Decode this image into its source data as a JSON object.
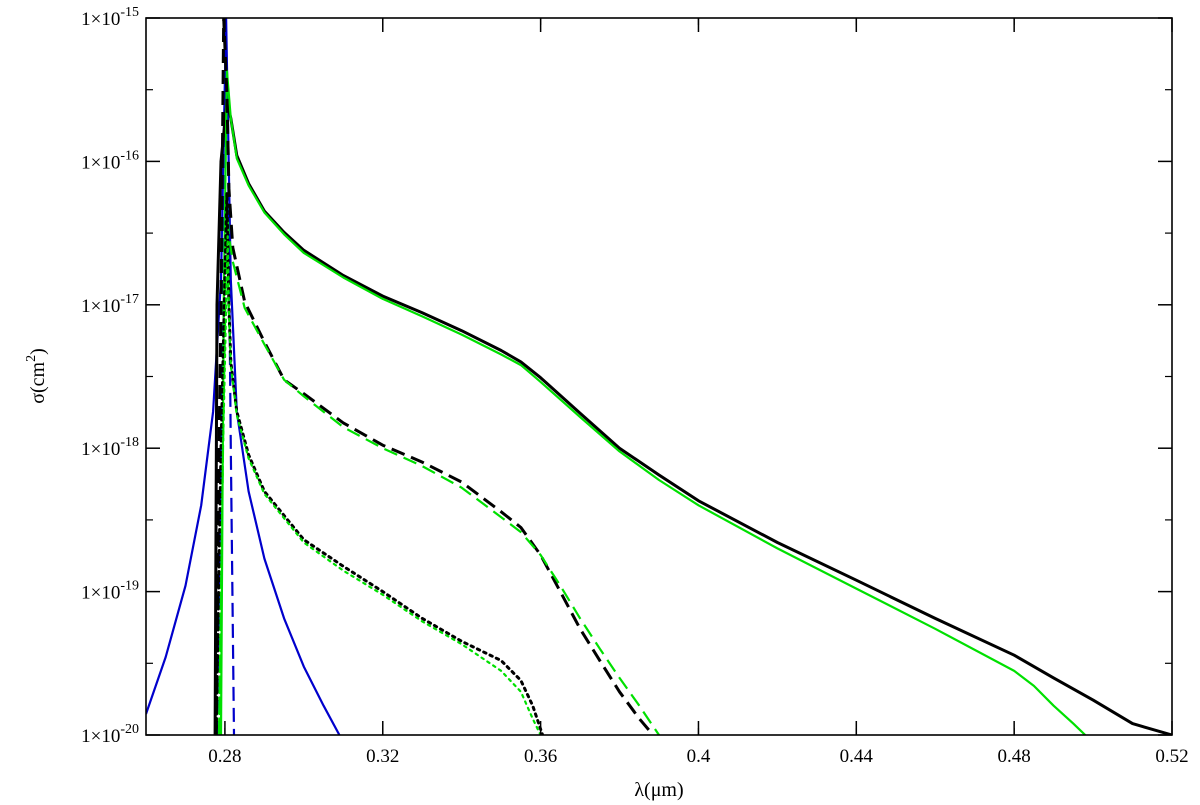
{
  "chart_data": {
    "type": "line",
    "title": "",
    "xlabel": "λ(μm)",
    "ylabel_base": "σ(cm",
    "ylabel_exp": "2",
    "ylabel_close": ")",
    "xlim": [
      0.26,
      0.52
    ],
    "ylim": [
      1e-20,
      1e-15
    ],
    "yscale": "log",
    "grid": false,
    "x_ticks": [
      0.28,
      0.32,
      0.36,
      0.4,
      0.44,
      0.48,
      0.52
    ],
    "x_tick_labels": [
      "0.28",
      "0.32",
      "0.36",
      "0.4",
      "0.44",
      "0.48",
      "0.52"
    ],
    "y_ticks": [
      1e-20,
      1e-19,
      1e-18,
      1e-17,
      1e-16,
      1e-15
    ],
    "y_tick_labels": [
      {
        "mantissa": "1×10",
        "exponent": "-20"
      },
      {
        "mantissa": "1×10",
        "exponent": "-19"
      },
      {
        "mantissa": "1×10",
        "exponent": "-18"
      },
      {
        "mantissa": "1×10",
        "exponent": "-17"
      },
      {
        "mantissa": "1×10",
        "exponent": "-16"
      },
      {
        "mantissa": "1×10",
        "exponent": "-15"
      }
    ],
    "series": [
      {
        "color": "#0000cc",
        "style": "solid",
        "points": [
          [
            0.26,
            1.4e-20
          ],
          [
            0.265,
            3.5e-20
          ],
          [
            0.27,
            1.1e-19
          ],
          [
            0.274,
            4e-19
          ],
          [
            0.277,
            1.8e-18
          ],
          [
            0.279,
            1.5e-17
          ],
          [
            0.2803,
            1e-15
          ],
          [
            0.2815,
            1.5e-17
          ],
          [
            0.283,
            1.8e-18
          ],
          [
            0.286,
            5e-19
          ],
          [
            0.29,
            1.7e-19
          ],
          [
            0.295,
            6.5e-20
          ],
          [
            0.3,
            3e-20
          ],
          [
            0.305,
            1.6e-20
          ],
          [
            0.309,
            1e-20
          ]
        ]
      },
      {
        "color": "#0000cc",
        "style": "dashed",
        "points": [
          [
            0.278,
            1e-20
          ],
          [
            0.279,
            1e-18
          ],
          [
            0.2797,
            1e-16
          ],
          [
            0.2802,
            1e-15
          ],
          [
            0.2808,
            1e-16
          ],
          [
            0.2815,
            1e-18
          ],
          [
            0.2823,
            1e-20
          ]
        ]
      },
      {
        "color": "#000000",
        "style": "solid",
        "points": [
          [
            0.2775,
            1e-20
          ],
          [
            0.278,
            1e-17
          ],
          [
            0.279,
            1e-16
          ],
          [
            0.2805,
            2.6e-16
          ],
          [
            0.2815,
            2e-16
          ],
          [
            0.283,
            1.1e-16
          ],
          [
            0.286,
            7e-17
          ],
          [
            0.29,
            4.5e-17
          ],
          [
            0.295,
            3.2e-17
          ],
          [
            0.3,
            2.4e-17
          ],
          [
            0.31,
            1.6e-17
          ],
          [
            0.32,
            1.15e-17
          ],
          [
            0.33,
            8.8e-18
          ],
          [
            0.34,
            6.6e-18
          ],
          [
            0.35,
            4.8e-18
          ],
          [
            0.355,
            4e-18
          ],
          [
            0.36,
            3.1e-18
          ],
          [
            0.37,
            1.75e-18
          ],
          [
            0.38,
            1e-18
          ],
          [
            0.39,
            6.5e-19
          ],
          [
            0.4,
            4.3e-19
          ],
          [
            0.42,
            2.2e-19
          ],
          [
            0.44,
            1.2e-19
          ],
          [
            0.46,
            6.5e-20
          ],
          [
            0.48,
            3.6e-20
          ],
          [
            0.49,
            2.5e-20
          ],
          [
            0.5,
            1.75e-20
          ],
          [
            0.51,
            1.2e-20
          ],
          [
            0.52,
            1e-20
          ]
        ]
      },
      {
        "color": "#00e000",
        "style": "solid",
        "points": [
          [
            0.279,
            1e-20
          ],
          [
            0.2797,
            1e-17
          ],
          [
            0.2805,
            4.3e-16
          ],
          [
            0.2815,
            2e-16
          ],
          [
            0.283,
            1.05e-16
          ],
          [
            0.286,
            6.8e-17
          ],
          [
            0.29,
            4.4e-17
          ],
          [
            0.295,
            3.1e-17
          ],
          [
            0.3,
            2.3e-17
          ],
          [
            0.31,
            1.55e-17
          ],
          [
            0.32,
            1.1e-17
          ],
          [
            0.33,
            8.3e-18
          ],
          [
            0.34,
            6.2e-18
          ],
          [
            0.35,
            4.5e-18
          ],
          [
            0.355,
            3.8e-18
          ],
          [
            0.36,
            2.9e-18
          ],
          [
            0.37,
            1.65e-18
          ],
          [
            0.38,
            9.5e-19
          ],
          [
            0.39,
            6e-19
          ],
          [
            0.4,
            4e-19
          ],
          [
            0.42,
            2e-19
          ],
          [
            0.44,
            1.05e-19
          ],
          [
            0.46,
            5.5e-20
          ],
          [
            0.48,
            2.8e-20
          ],
          [
            0.485,
            2.2e-20
          ],
          [
            0.49,
            1.6e-20
          ],
          [
            0.495,
            1.2e-20
          ],
          [
            0.498,
            1e-20
          ]
        ]
      },
      {
        "color": "#000000",
        "style": "dashed",
        "points": [
          [
            0.2778,
            1e-20
          ],
          [
            0.2785,
            1e-18
          ],
          [
            0.279,
            1e-17
          ],
          [
            0.2797,
            1e-15
          ],
          [
            0.2805,
            3e-16
          ],
          [
            0.281,
            6.5e-17
          ],
          [
            0.282,
            2.5e-17
          ],
          [
            0.285,
            1.05e-17
          ],
          [
            0.29,
            5.5e-18
          ],
          [
            0.295,
            3e-18
          ],
          [
            0.3,
            2.4e-18
          ],
          [
            0.31,
            1.5e-18
          ],
          [
            0.32,
            1.05e-18
          ],
          [
            0.33,
            8e-19
          ],
          [
            0.34,
            5.8e-19
          ],
          [
            0.35,
            3.6e-19
          ],
          [
            0.355,
            2.8e-19
          ],
          [
            0.36,
            1.8e-19
          ],
          [
            0.365,
            1e-19
          ],
          [
            0.37,
            5.5e-20
          ],
          [
            0.375,
            3.3e-20
          ],
          [
            0.38,
            2e-20
          ],
          [
            0.385,
            1.3e-20
          ],
          [
            0.3885,
            1e-20
          ]
        ]
      },
      {
        "color": "#00e000",
        "style": "dashed",
        "points": [
          [
            0.2785,
            1e-20
          ],
          [
            0.2795,
            1e-18
          ],
          [
            0.2805,
            5e-17
          ],
          [
            0.281,
            3e-17
          ],
          [
            0.282,
            2e-17
          ],
          [
            0.285,
            9.5e-18
          ],
          [
            0.29,
            5.3e-18
          ],
          [
            0.295,
            3e-18
          ],
          [
            0.3,
            2.3e-18
          ],
          [
            0.31,
            1.4e-18
          ],
          [
            0.32,
            1e-18
          ],
          [
            0.33,
            7.5e-19
          ],
          [
            0.34,
            5.3e-19
          ],
          [
            0.35,
            3.3e-19
          ],
          [
            0.355,
            2.6e-19
          ],
          [
            0.36,
            1.8e-19
          ],
          [
            0.365,
            1.1e-19
          ],
          [
            0.37,
            6.5e-20
          ],
          [
            0.375,
            4e-20
          ],
          [
            0.38,
            2.5e-20
          ],
          [
            0.385,
            1.6e-20
          ],
          [
            0.39,
            1e-20
          ]
        ]
      },
      {
        "color": "#000000",
        "style": "dotted",
        "points": [
          [
            0.2778,
            1e-20
          ],
          [
            0.279,
            1e-18
          ],
          [
            0.2805,
            6e-17
          ],
          [
            0.281,
            1e-17
          ],
          [
            0.2815,
            4e-18
          ],
          [
            0.283,
            1.8e-18
          ],
          [
            0.286,
            9e-19
          ],
          [
            0.29,
            5e-19
          ],
          [
            0.3,
            2.3e-19
          ],
          [
            0.31,
            1.5e-19
          ],
          [
            0.32,
            1e-19
          ],
          [
            0.33,
            6.5e-20
          ],
          [
            0.34,
            4.5e-20
          ],
          [
            0.35,
            3.3e-20
          ],
          [
            0.355,
            2.4e-20
          ],
          [
            0.358,
            1.6e-20
          ],
          [
            0.36,
            1.1e-20
          ],
          [
            0.3605,
            1e-20
          ]
        ]
      },
      {
        "color": "#00e000",
        "style": "dotted",
        "points": [
          [
            0.2785,
            1e-20
          ],
          [
            0.2795,
            1e-18
          ],
          [
            0.2807,
            3e-17
          ],
          [
            0.281,
            9e-18
          ],
          [
            0.2815,
            3.8e-18
          ],
          [
            0.283,
            1.7e-18
          ],
          [
            0.286,
            8.5e-19
          ],
          [
            0.29,
            4.8e-19
          ],
          [
            0.3,
            2.2e-19
          ],
          [
            0.31,
            1.4e-19
          ],
          [
            0.32,
            9.5e-20
          ],
          [
            0.33,
            6.2e-20
          ],
          [
            0.34,
            4.3e-20
          ],
          [
            0.35,
            2.8e-20
          ],
          [
            0.355,
            2e-20
          ],
          [
            0.358,
            1.3e-20
          ],
          [
            0.36,
            1e-20
          ]
        ]
      }
    ]
  }
}
